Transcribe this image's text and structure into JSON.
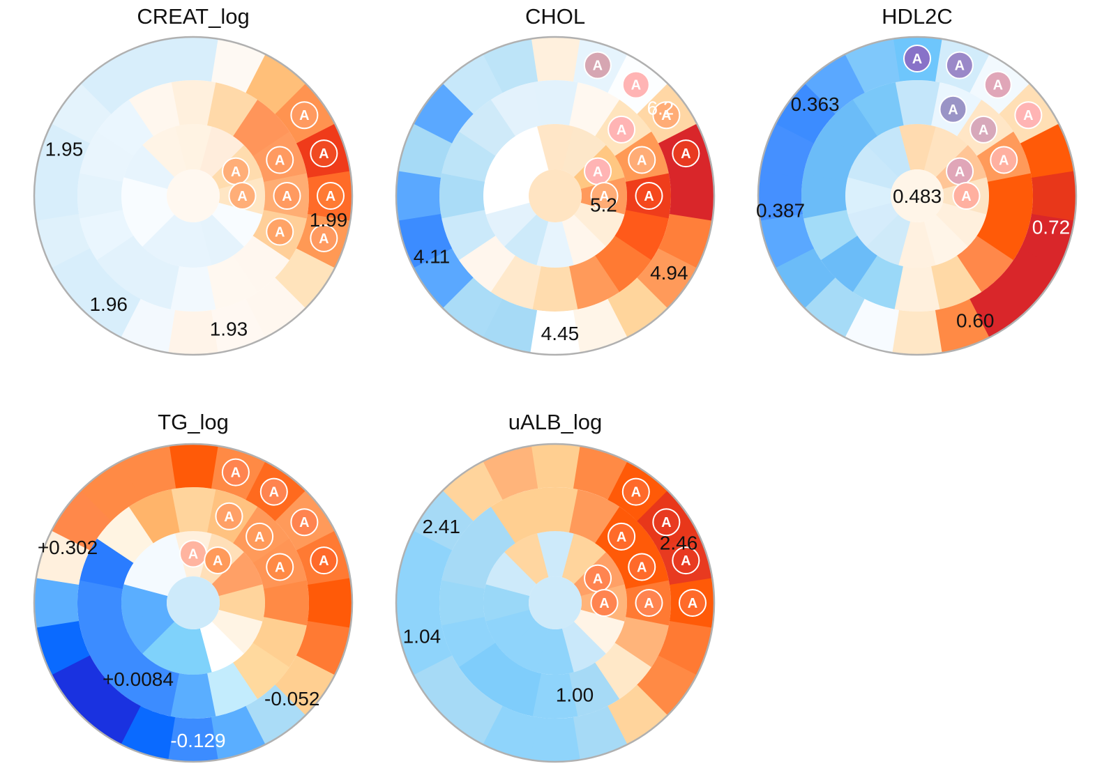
{
  "chart_data": [
    {
      "type": "heatmap",
      "title": "CREAT_log",
      "rings": [
        [
          "#fff3e3",
          "#ffeddc",
          "#ffdcae",
          "#ffe6c4",
          "#f8fcff",
          "#e5f3fc",
          "#e7f4fd",
          "#e7f4fd",
          "#f8fcff",
          "#f8fcff",
          "#e7f4fd",
          "#fff4e6"
        ],
        [
          "#fff0dd",
          "#ffd9a9",
          "#ff955a",
          "#ff9b60",
          "#ffad73",
          "#ffcf99",
          "#fff7ef",
          "#fff8f0",
          "#f2f9fe",
          "#e2f2fc",
          "#e2f2fc",
          "#eaf6fe",
          "#e4f3fc",
          "#e9f5fd",
          "#eaf6fe",
          "#fff7ee"
        ],
        [
          "#d8eefb",
          "#fef9f3",
          "#ffbf79",
          "#ff9350",
          "#ef3b1a",
          "#ff6b28",
          "#ff9955",
          "#ffe3bb",
          "#fff7ef",
          "#fff8f2",
          "#fff4e9",
          "#f3f9fe",
          "#d8eefb",
          "#d8eefb",
          "#dff1fb",
          "#d8eefb",
          "#d8eefb",
          "#e4f3fc",
          "#d8eefb",
          "#d8eefb"
        ]
      ],
      "center_color": "#fff8f0",
      "markers": [
        [
          2,
          3
        ],
        [
          2,
          4
        ],
        [
          2,
          5
        ],
        [
          2,
          6
        ],
        [
          1,
          3
        ],
        [
          1,
          4
        ],
        [
          1,
          5
        ],
        [
          0,
          2
        ],
        [
          0,
          3
        ]
      ],
      "marker_colors": [
        "#ff9a60",
        "#f04a22",
        "#ff7a33",
        "#ff9a60",
        "#ff9a60",
        "#ff9a60",
        "#ffa366",
        "#ffae78",
        "#ffae78"
      ],
      "labels": [
        {
          "text": "1.95",
          "ring": 2,
          "angle": 290,
          "color": "#111111"
        },
        {
          "text": "1.99",
          "ring": 2,
          "angle": 100,
          "color": "#111111"
        },
        {
          "text": "1.96",
          "ring": 2,
          "angle": 218,
          "color": "#111111"
        },
        {
          "text": "1.93",
          "ring": 2,
          "angle": 165,
          "color": "#111111"
        }
      ]
    },
    {
      "type": "heatmap",
      "title": "CHOL",
      "rings": [
        [
          "#ffe6c7",
          "#fde7c9",
          "#ffc782",
          "#ff9a5c",
          "#ffeed8",
          "#fff6ec",
          "#e7f4fd",
          "#cdeafa",
          "#e3f2fc",
          "#ffffff",
          "#ffffff",
          "#ffffff"
        ],
        [
          "#e2f2fc",
          "#fff8f0",
          "#ffe4bd",
          "#ff9955",
          "#ef3d1b",
          "#ff5a1a",
          "#ff7a33",
          "#ff9a5a",
          "#ffdcae",
          "#ffe9cc",
          "#fff6ed",
          "#cbe9fa",
          "#aadcf7",
          "#bde4f8",
          "#cfeaf9",
          "#e3f2fc"
        ],
        [
          "#fff0dd",
          "#e6f4fd",
          "#fcfeff",
          "#ffd7a5",
          "#d9262a",
          "#d9262a",
          "#ff7f3a",
          "#ff9a5a",
          "#ffd59c",
          "#fff5e8",
          "#ffffff",
          "#a6daf6",
          "#aadcf7",
          "#5aa8ff",
          "#3c8cff",
          "#5aa8ff",
          "#a6daf6",
          "#5aa8ff",
          "#c7e8fa",
          "#bde4f8"
        ]
      ],
      "center_color": "#ffe4c2",
      "markers": [
        [
          2,
          1
        ],
        [
          2,
          2
        ],
        [
          2,
          3
        ],
        [
          2,
          4
        ],
        [
          1,
          2
        ],
        [
          1,
          3
        ],
        [
          1,
          4
        ],
        [
          0,
          2
        ],
        [
          0,
          3
        ]
      ],
      "marker_colors": [
        "#d6a6b2",
        "#ffb4b4",
        "#ffac76",
        "#e83a20",
        "#ffb4b4",
        "#ffac76",
        "#f5481d",
        "#ffb4b4",
        "#ffac76"
      ],
      "labels": [
        {
          "text": "6.2",
          "ring": 2,
          "angle": 50,
          "color": "#ffffff"
        },
        {
          "text": "5.2",
          "ring": 0,
          "angle": 100,
          "color": "#111111"
        },
        {
          "text": "4.11",
          "ring": 2,
          "angle": 244,
          "color": "#111111"
        },
        {
          "text": "4.45",
          "ring": 2,
          "angle": 178,
          "color": "#111111"
        },
        {
          "text": "4.94",
          "ring": 2,
          "angle": 124,
          "color": "#111111"
        }
      ]
    },
    {
      "type": "heatmap",
      "title": "HDL2C",
      "rings": [
        [
          "#ffdbb0",
          "#ffe3c0",
          "#ffc596",
          "#fde4c4",
          "#fff0dd",
          "#fff5e8",
          "#fff1e0",
          "#cfeaf9",
          "#d5ecfb",
          "#daf0fc",
          "#c9e8fa",
          "#c4e6fa"
        ],
        [
          "#c4e6fa",
          "#eaf6fe",
          "#ffe6c6",
          "#ff9a5a",
          "#ff5a08",
          "#ff5a08",
          "#ff884a",
          "#ffd9a6",
          "#fff0dd",
          "#9ad8f8",
          "#6bbcf8",
          "#a3dcf8",
          "#6bbcf8",
          "#6bbcf8",
          "#6bbcf8",
          "#7ac8f9"
        ],
        [
          "#6ec6fc",
          "#d2ecfb",
          "#f2f9fe",
          "#ffdfb5",
          "#ff5a08",
          "#e8371a",
          "#d9262a",
          "#d9262a",
          "#d9262a",
          "#ff8a45",
          "#ffe7c6",
          "#f7fbff",
          "#a6dbf7",
          "#6bbcf8",
          "#5aa8ff",
          "#4590ff",
          "#4590ff",
          "#3c8cff",
          "#5aa8ff",
          "#7fc8fb"
        ]
      ],
      "center_color": "#fff5e8",
      "markers": [
        [
          2,
          0
        ],
        [
          2,
          1
        ],
        [
          2,
          2
        ],
        [
          2,
          3
        ],
        [
          1,
          1
        ],
        [
          1,
          2
        ],
        [
          1,
          3
        ],
        [
          0,
          2
        ],
        [
          0,
          3
        ]
      ],
      "marker_colors": [
        "#8872c8",
        "#9a88c8",
        "#e0a6b8",
        "#ffb4b4",
        "#9a94c6",
        "#d7a8ba",
        "#ffb0a0",
        "#e0a6b8",
        "#ffb0a0"
      ],
      "labels": [
        {
          "text": "0.363",
          "ring": 2,
          "angle": 312,
          "color": "#111111"
        },
        {
          "text": "0.483",
          "ring": 0,
          "angle": 0,
          "color": "#111111",
          "center": true
        },
        {
          "text": "0.387",
          "ring": 2,
          "angle": 264,
          "color": "#111111"
        },
        {
          "text": "0.72",
          "ring": 2,
          "angle": 103,
          "color": "#ffffff"
        },
        {
          "text": "0.60",
          "ring": 2,
          "angle": 155,
          "color": "#111111"
        }
      ]
    },
    {
      "type": "heatmap",
      "title": "TG_log",
      "rings": [
        [
          "#fff0dd",
          "#ffdfb8",
          "#ffa066",
          "#ffd49c",
          "#fff4e4",
          "#ffffff",
          "#7fd2fb",
          "#7fd2fb",
          "#5aaeff",
          "#5aaeff",
          "#f4faff",
          "#f4faff"
        ],
        [
          "#ffd49c",
          "#ffc280",
          "#ff9a5a",
          "#ff9555",
          "#ff8a45",
          "#ffcf91",
          "#ffd99e",
          "#c3ecfd",
          "#5aaeff",
          "#3c8cff",
          "#3c8cff",
          "#3c8cff",
          "#3c8cff",
          "#2a7cff",
          "#fff4e2",
          "#ffb46a"
        ],
        [
          "#ff5a08",
          "#ff8a45",
          "#ff6a1e",
          "#ff9a5a",
          "#ff7a33",
          "#ff5a08",
          "#ff7a33",
          "#ffcf91",
          "#aadcf7",
          "#5aaeff",
          "#3c8cff",
          "#0a6aff",
          "#1a32e0",
          "#1a32e0",
          "#0a6aff",
          "#5aaeff",
          "#fff0dd",
          "#ff884a",
          "#ff8a45",
          "#ff8a45"
        ]
      ],
      "center_color": "#cdeafa",
      "markers": [
        [
          2,
          1
        ],
        [
          2,
          2
        ],
        [
          2,
          3
        ],
        [
          2,
          4
        ],
        [
          1,
          1
        ],
        [
          1,
          2
        ],
        [
          1,
          3
        ],
        [
          0,
          0
        ],
        [
          0,
          1
        ]
      ],
      "marker_colors": [
        "#ff8450",
        "#ff8450",
        "#ff8450",
        "#ff6a2a",
        "#ffa066",
        "#ff9a5a",
        "#ff8a45",
        "#ffb4a0",
        "#ff9a5a"
      ],
      "labels": [
        {
          "text": "+0.302",
          "ring": 2,
          "angle": 294,
          "color": "#111111"
        },
        {
          "text": "+0.0084",
          "ring": 1,
          "angle": 216,
          "color": "#111111"
        },
        {
          "text": "-0.052",
          "ring": 2,
          "angle": 134,
          "color": "#111111"
        },
        {
          "text": "-0.129",
          "ring": 2,
          "angle": 178,
          "color": "#ffffff"
        }
      ]
    },
    {
      "type": "heatmap",
      "title": "uALB_log",
      "rings": [
        [
          "#cdeafa",
          "#ffd49c",
          "#ffa066",
          "#ffb47a",
          "#fff4e6",
          "#c9e8fa",
          "#8fd4fb",
          "#8fd4fb",
          "#8fd4fb",
          "#9ad8f8",
          "#cdeafa",
          "#ffd6a0"
        ],
        [
          "#ffcf91",
          "#ff9a5a",
          "#ff5a08",
          "#ff5a08",
          "#ff7a33",
          "#ffb47a",
          "#ffe8c8",
          "#a6daf6",
          "#8fd4fb",
          "#7fcdfb",
          "#7fcdfb",
          "#8fd4fb",
          "#9ad8f8",
          "#a6daf6",
          "#a6daf6",
          "#ffcf91"
        ],
        [
          "#ffcf91",
          "#ff8a45",
          "#ff5a08",
          "#e8371a",
          "#e83a20",
          "#ff5a08",
          "#ff7a33",
          "#ff8a45",
          "#ffd49c",
          "#a6daf6",
          "#8fd4fb",
          "#8fd4fb",
          "#a6daf6",
          "#a6daf6",
          "#8fd4fb",
          "#8fd4fb",
          "#8fd4fb",
          "#a6daf6",
          "#ffd49c",
          "#ffb47a"
        ]
      ],
      "center_color": "#cdeafa",
      "markers": [
        [
          2,
          2
        ],
        [
          2,
          3
        ],
        [
          2,
          4
        ],
        [
          2,
          5
        ],
        [
          1,
          2
        ],
        [
          1,
          3
        ],
        [
          1,
          4
        ],
        [
          0,
          2
        ],
        [
          0,
          3
        ]
      ],
      "marker_colors": [
        "#ff6a2a",
        "#e83a20",
        "#e83a20",
        "#ff6a2a",
        "#ff6a2a",
        "#ff6a2a",
        "#ff8450",
        "#ff8450",
        "#ff8450"
      ],
      "labels": [
        {
          "text": "2.41",
          "ring": 2,
          "angle": 304,
          "color": "#111111"
        },
        {
          "text": "2.46",
          "ring": 2,
          "angle": 64,
          "color": "#111111"
        },
        {
          "text": "1.04",
          "ring": 2,
          "angle": 256,
          "color": "#111111"
        },
        {
          "text": "1.00",
          "ring": 1,
          "angle": 168,
          "color": "#111111"
        }
      ]
    }
  ],
  "marker_glyph": "A"
}
